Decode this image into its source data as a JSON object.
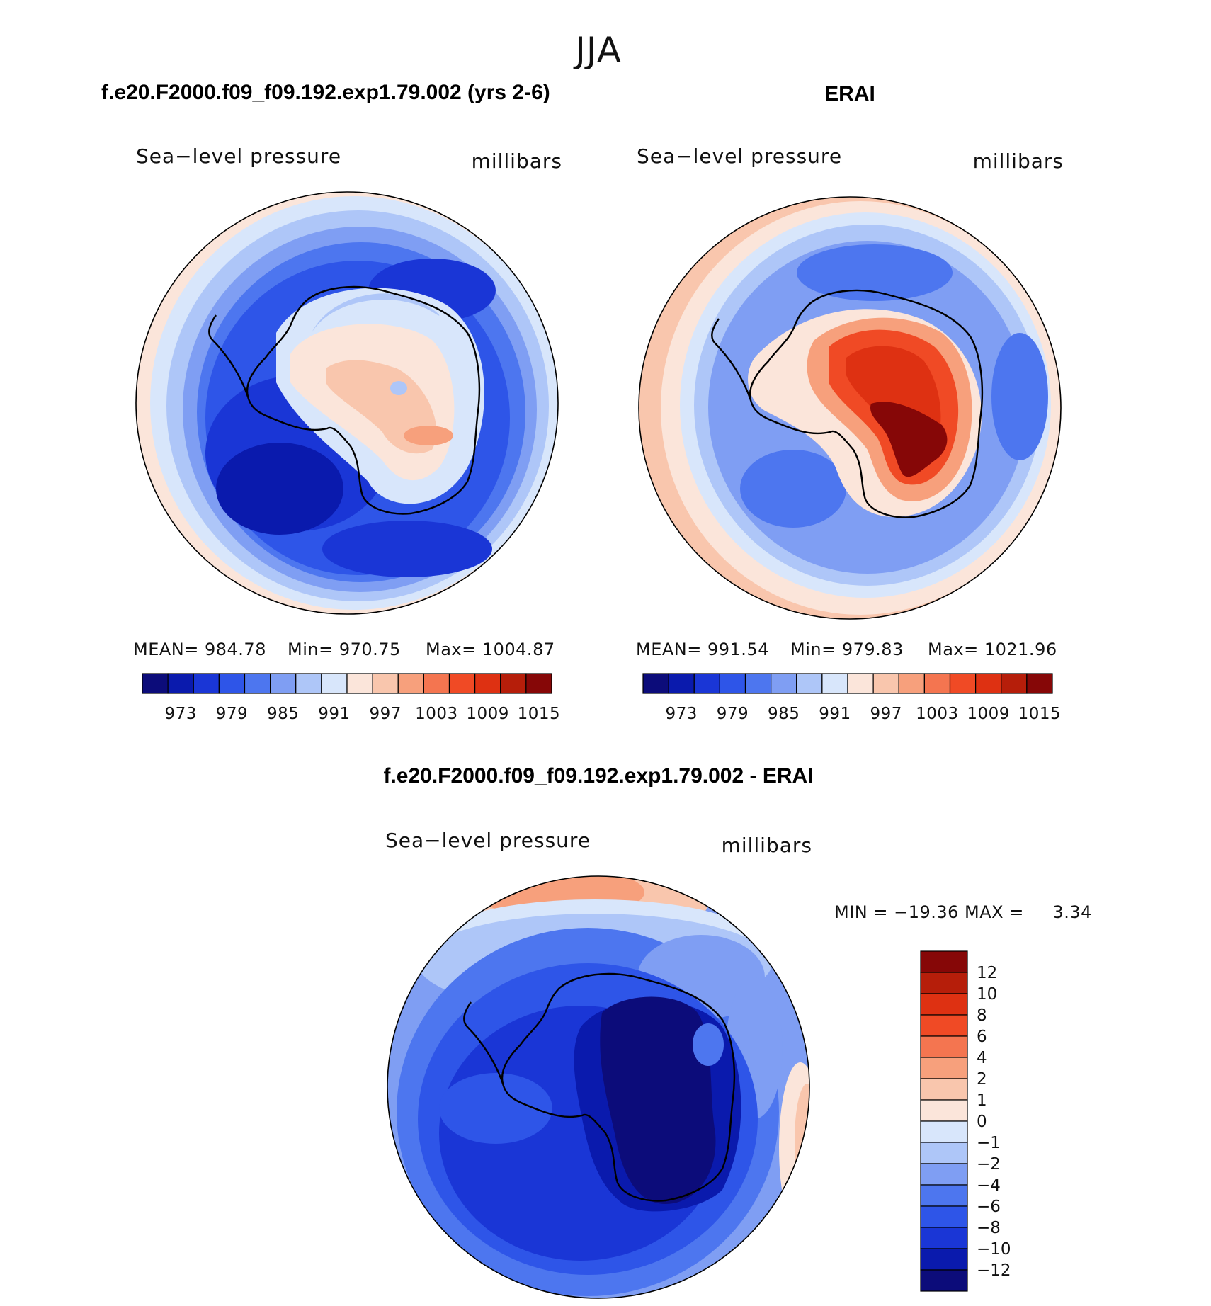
{
  "figure": {
    "title": "JJA"
  },
  "chart_data": [
    {
      "type": "heatmap",
      "projection": "south-polar-stereographic",
      "title": "f.e20.F2000.f09_f09.192.exp1.79.002 (yrs 2-6)",
      "left_label": "Sea−level pressure",
      "right_label": "millibars",
      "stats": {
        "mean": "MEAN= 984.78",
        "min": "Min= 970.75",
        "max": "Max= 1004.87"
      },
      "colorbar": {
        "orientation": "horizontal",
        "colors": [
          "#0c0c7a",
          "#0a1aad",
          "#1a36d6",
          "#2e55e8",
          "#4d76ef",
          "#7f9ef3",
          "#aec6f8",
          "#d8e6fb",
          "#fbe5da",
          "#f9c6ad",
          "#f7a07c",
          "#f47550",
          "#f04a25",
          "#de3112",
          "#b61e0a",
          "#860707"
        ],
        "tick_labels": [
          "973",
          "979",
          "985",
          "991",
          "997",
          "1003",
          "1009",
          "1015"
        ]
      }
    },
    {
      "type": "heatmap",
      "projection": "south-polar-stereographic",
      "title": "ERAI",
      "left_label": "Sea−level pressure",
      "right_label": "millibars",
      "stats": {
        "mean": "MEAN= 991.54",
        "min": "Min= 979.83",
        "max": "Max= 1021.96"
      },
      "colorbar": {
        "orientation": "horizontal",
        "colors": [
          "#0c0c7a",
          "#0a1aad",
          "#1a36d6",
          "#2e55e8",
          "#4d76ef",
          "#7f9ef3",
          "#aec6f8",
          "#d8e6fb",
          "#fbe5da",
          "#f9c6ad",
          "#f7a07c",
          "#f47550",
          "#f04a25",
          "#de3112",
          "#b61e0a",
          "#860707"
        ],
        "tick_labels": [
          "973",
          "979",
          "985",
          "991",
          "997",
          "1003",
          "1009",
          "1015"
        ]
      }
    },
    {
      "type": "heatmap",
      "projection": "south-polar-stereographic",
      "title": "f.e20.F2000.f09_f09.192.exp1.79.002 - ERAI",
      "left_label": "Sea−level pressure",
      "right_label": "millibars",
      "minmax": "MIN = −19.36 MAX =     3.34",
      "colorbar": {
        "orientation": "vertical",
        "colors": [
          "#860707",
          "#b61e0a",
          "#de3112",
          "#f04a25",
          "#f47550",
          "#f7a07c",
          "#f9c6ad",
          "#fbe5da",
          "#d8e6fb",
          "#aec6f8",
          "#7f9ef3",
          "#4d76ef",
          "#2e55e8",
          "#1a36d6",
          "#0a1aad",
          "#0c0c7a"
        ],
        "tick_labels": [
          "12",
          "10",
          "8",
          "6",
          "4",
          "2",
          "1",
          "0",
          "−1",
          "−2",
          "−4",
          "−6",
          "−8",
          "−10",
          "−12"
        ]
      }
    }
  ]
}
